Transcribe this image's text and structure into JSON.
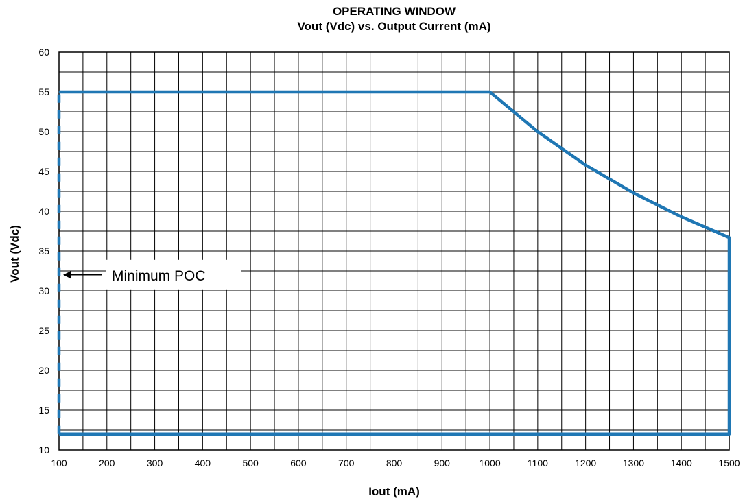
{
  "chart_data": {
    "type": "line",
    "title": "OPERATING WINDOW",
    "subtitle": "Vout (Vdc) vs. Output Current (mA)",
    "xlabel": "Iout (mA)",
    "ylabel": "Vout (Vdc)",
    "xlim": [
      100,
      1500
    ],
    "ylim": [
      10,
      60
    ],
    "x_ticks": [
      100,
      200,
      300,
      400,
      500,
      600,
      700,
      800,
      900,
      1000,
      1100,
      1200,
      1300,
      1400,
      1500
    ],
    "y_ticks": [
      10,
      15,
      20,
      25,
      30,
      35,
      40,
      45,
      50,
      55,
      60
    ],
    "grid": {
      "x_minor_step": 50,
      "y_minor_step": 2.5,
      "visible": true
    },
    "series_color": "#1f77b4",
    "series": [
      {
        "style": "solid",
        "points": [
          {
            "x": 100,
            "y": 55
          },
          {
            "x": 1000,
            "y": 55
          },
          {
            "x": 1100,
            "y": 50
          },
          {
            "x": 1200,
            "y": 45.8
          },
          {
            "x": 1300,
            "y": 42.3
          },
          {
            "x": 1400,
            "y": 39.3
          },
          {
            "x": 1500,
            "y": 36.7
          },
          {
            "x": 1500,
            "y": 12
          },
          {
            "x": 100,
            "y": 12
          }
        ]
      },
      {
        "style": "dashed",
        "points": [
          {
            "x": 100,
            "y": 12
          },
          {
            "x": 100,
            "y": 55
          }
        ]
      }
    ],
    "annotations": [
      {
        "text": "Minimum POC",
        "arrow_to": {
          "x": 100,
          "y": 32
        }
      }
    ]
  }
}
